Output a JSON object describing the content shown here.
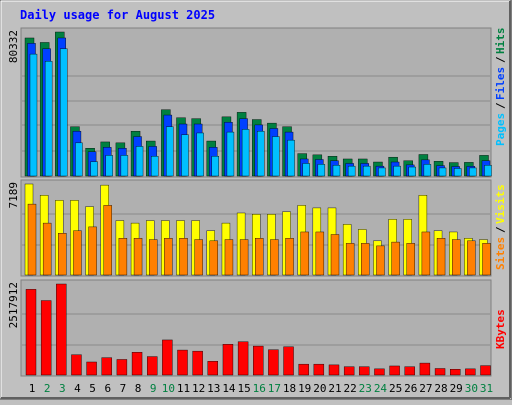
{
  "chart_data": [
    {
      "type": "bar",
      "title": "Daily usage for August 2025",
      "categories": [
        "1",
        "2",
        "3",
        "4",
        "5",
        "6",
        "7",
        "8",
        "9",
        "10",
        "11",
        "12",
        "13",
        "14",
        "15",
        "16",
        "17",
        "18",
        "19",
        "20",
        "21",
        "22",
        "23",
        "24",
        "25",
        "26",
        "27",
        "28",
        "29",
        "30",
        "31"
      ],
      "weekend_days": [
        "2",
        "3",
        "9",
        "10",
        "16",
        "17",
        "23",
        "24",
        "30",
        "31"
      ],
      "max_label": "80332",
      "legend": [
        {
          "text": "Pages",
          "color": "#00c0ff"
        },
        {
          "text": "/",
          "color": "#000000"
        },
        {
          "text": "Files",
          "color": "#0040ff"
        },
        {
          "text": "/",
          "color": "#000000"
        },
        {
          "text": "Hits",
          "color": "#008040"
        }
      ],
      "ylim": [
        0,
        80332
      ],
      "series": [
        {
          "name": "Hits",
          "color": "#008040",
          "values": [
            77000,
            74500,
            80332,
            27500,
            15500,
            19000,
            18500,
            25000,
            19500,
            37000,
            32500,
            32000,
            19500,
            33000,
            35500,
            31500,
            29500,
            27500,
            12500,
            11800,
            11000,
            9500,
            9500,
            7800,
            10500,
            8500,
            12000,
            8200,
            7500,
            7600,
            11500
          ]
        },
        {
          "name": "Files",
          "color": "#0040ff",
          "values": [
            74000,
            71000,
            77000,
            25000,
            13500,
            16000,
            15500,
            22000,
            16500,
            34000,
            29000,
            29000,
            16000,
            30000,
            32000,
            28500,
            26500,
            24500,
            9500,
            9200,
            8500,
            7000,
            7000,
            5500,
            7800,
            6200,
            9000,
            5800,
            5300,
            5400,
            8500
          ]
        },
        {
          "name": "Pages",
          "color": "#00c0ff",
          "values": [
            68000,
            64000,
            71000,
            18500,
            8000,
            11500,
            11500,
            16500,
            11000,
            27500,
            23000,
            24000,
            11000,
            24500,
            26000,
            25000,
            22000,
            20000,
            7000,
            6500,
            6000,
            5500,
            5500,
            4500,
            5500,
            5000,
            6500,
            4500,
            4200,
            4500,
            6000
          ]
        }
      ]
    },
    {
      "type": "bar",
      "categories": [
        "1",
        "2",
        "3",
        "4",
        "5",
        "6",
        "7",
        "8",
        "9",
        "10",
        "11",
        "12",
        "13",
        "14",
        "15",
        "16",
        "17",
        "18",
        "19",
        "20",
        "21",
        "22",
        "23",
        "24",
        "25",
        "26",
        "27",
        "28",
        "29",
        "30",
        "31"
      ],
      "max_label": "7189",
      "legend": [
        {
          "text": "Sites",
          "color": "#ff8000"
        },
        {
          "text": "/",
          "color": "#000000"
        },
        {
          "text": "Visits",
          "color": "#ffff00"
        }
      ],
      "ylim": [
        0,
        7189
      ],
      "series": [
        {
          "name": "Visits",
          "color": "#ffff00",
          "values": [
            7189,
            6300,
            5900,
            5900,
            5400,
            7100,
            4300,
            4100,
            4300,
            4300,
            4300,
            4300,
            3500,
            4100,
            4900,
            4800,
            4800,
            5000,
            5500,
            5300,
            5300,
            4000,
            3600,
            2700,
            4400,
            4400,
            6300,
            3500,
            3400,
            2900,
            2800
          ]
        },
        {
          "name": "Sites",
          "color": "#ff8000",
          "values": [
            5600,
            4100,
            3300,
            3500,
            3800,
            5500,
            2900,
            2900,
            2800,
            2900,
            2900,
            2800,
            2700,
            2800,
            2800,
            2900,
            2800,
            2900,
            3400,
            3400,
            3200,
            2500,
            2500,
            2300,
            2600,
            2500,
            3400,
            2900,
            2800,
            2700,
            2500
          ]
        }
      ]
    },
    {
      "type": "bar",
      "categories": [
        "1",
        "2",
        "3",
        "4",
        "5",
        "6",
        "7",
        "8",
        "9",
        "10",
        "11",
        "12",
        "13",
        "14",
        "15",
        "16",
        "17",
        "18",
        "19",
        "20",
        "21",
        "22",
        "23",
        "24",
        "25",
        "26",
        "27",
        "28",
        "29",
        "30",
        "31"
      ],
      "max_label": "2517912",
      "legend": [
        {
          "text": "KBytes",
          "color": "#ff0000"
        }
      ],
      "ylim": [
        0,
        2517912
      ],
      "series": [
        {
          "name": "KBytes",
          "color": "#ff0000",
          "values": [
            2370000,
            2060000,
            2517912,
            560000,
            360000,
            480000,
            430000,
            630000,
            510000,
            970000,
            690000,
            660000,
            380000,
            850000,
            920000,
            800000,
            700000,
            780000,
            300000,
            300000,
            280000,
            230000,
            230000,
            170000,
            250000,
            230000,
            330000,
            180000,
            160000,
            170000,
            260000
          ]
        }
      ]
    }
  ]
}
